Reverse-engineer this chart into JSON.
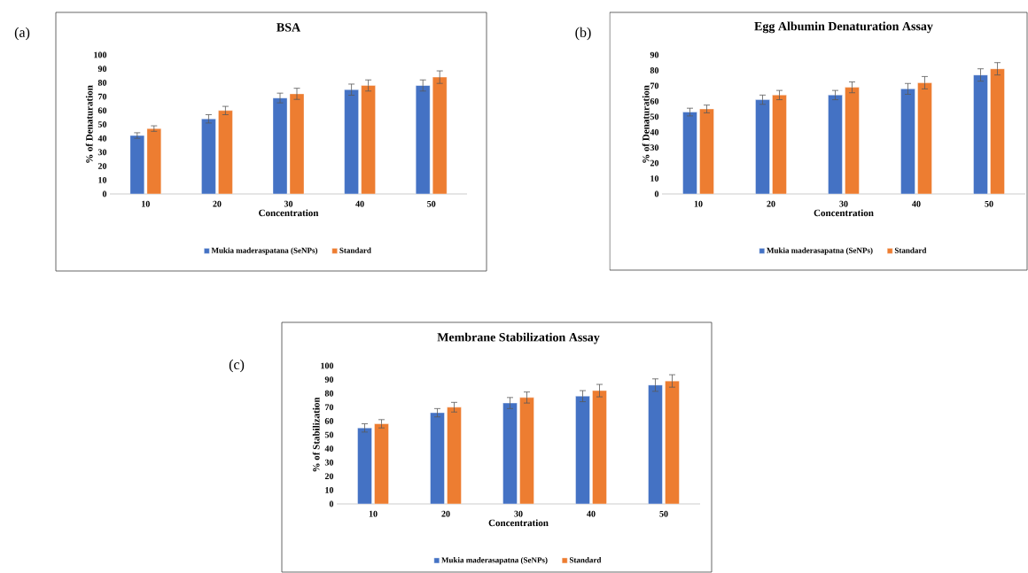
{
  "chart_data": [
    {
      "type": "bar",
      "title": "BSA",
      "xlabel": "Concentration",
      "ylabel": "% of Denaturation",
      "categories": [
        "10",
        "20",
        "30",
        "40",
        "50"
      ],
      "series": [
        {
          "name": "Mukia maderaspatana (SeNPs)",
          "color": "#4472c4",
          "values": [
            42,
            54,
            69,
            75,
            78
          ],
          "errors": [
            2,
            3,
            3.5,
            4,
            4
          ]
        },
        {
          "name": "Standard",
          "color": "#ed7d31",
          "values": [
            47,
            60,
            72,
            78,
            84
          ],
          "errors": [
            2,
            3,
            4,
            4,
            4.5
          ]
        }
      ],
      "ylim": [
        0,
        100
      ],
      "yticks": [
        0,
        10,
        20,
        30,
        40,
        50,
        60,
        70,
        80,
        90,
        100
      ],
      "legend": "bottom",
      "annotations": [
        "(a)"
      ]
    },
    {
      "type": "bar",
      "title": "Egg Albumin Denaturation Assay",
      "xlabel": "Concentration",
      "ylabel": "% of Denaturation",
      "categories": [
        "10",
        "20",
        "30",
        "40",
        "50"
      ],
      "series": [
        {
          "name": "Mukia maderasapatna (SeNPs)",
          "color": "#4472c4",
          "values": [
            53,
            61,
            64,
            68,
            77
          ],
          "errors": [
            2.5,
            3,
            3,
            3.5,
            4
          ]
        },
        {
          "name": "Standard",
          "color": "#ed7d31",
          "values": [
            55,
            64,
            69,
            72,
            81
          ],
          "errors": [
            2.5,
            3,
            3.5,
            4,
            4
          ]
        }
      ],
      "ylim": [
        0,
        90
      ],
      "yticks": [
        0,
        10,
        20,
        30,
        40,
        50,
        60,
        70,
        80,
        90
      ],
      "legend": "bottom",
      "annotations": [
        "(b)"
      ]
    },
    {
      "type": "bar",
      "title": "Membrane Stabilization Assay",
      "xlabel": "Concentration",
      "ylabel": "% of Stabilization",
      "categories": [
        "10",
        "20",
        "30",
        "40",
        "50"
      ],
      "series": [
        {
          "name": "Mukia maderasapatna (SeNPs)",
          "color": "#4472c4",
          "values": [
            55,
            66,
            73,
            78,
            86
          ],
          "errors": [
            3,
            3,
            4,
            4,
            4.5
          ]
        },
        {
          "name": "Standard",
          "color": "#ed7d31",
          "values": [
            58,
            70,
            77,
            82,
            89
          ],
          "errors": [
            3,
            3.5,
            4,
            4.5,
            4.5
          ]
        }
      ],
      "ylim": [
        0,
        100
      ],
      "yticks": [
        0,
        10,
        20,
        30,
        40,
        50,
        60,
        70,
        80,
        90,
        100
      ],
      "legend": "bottom",
      "annotations": [
        "(c)"
      ]
    }
  ]
}
